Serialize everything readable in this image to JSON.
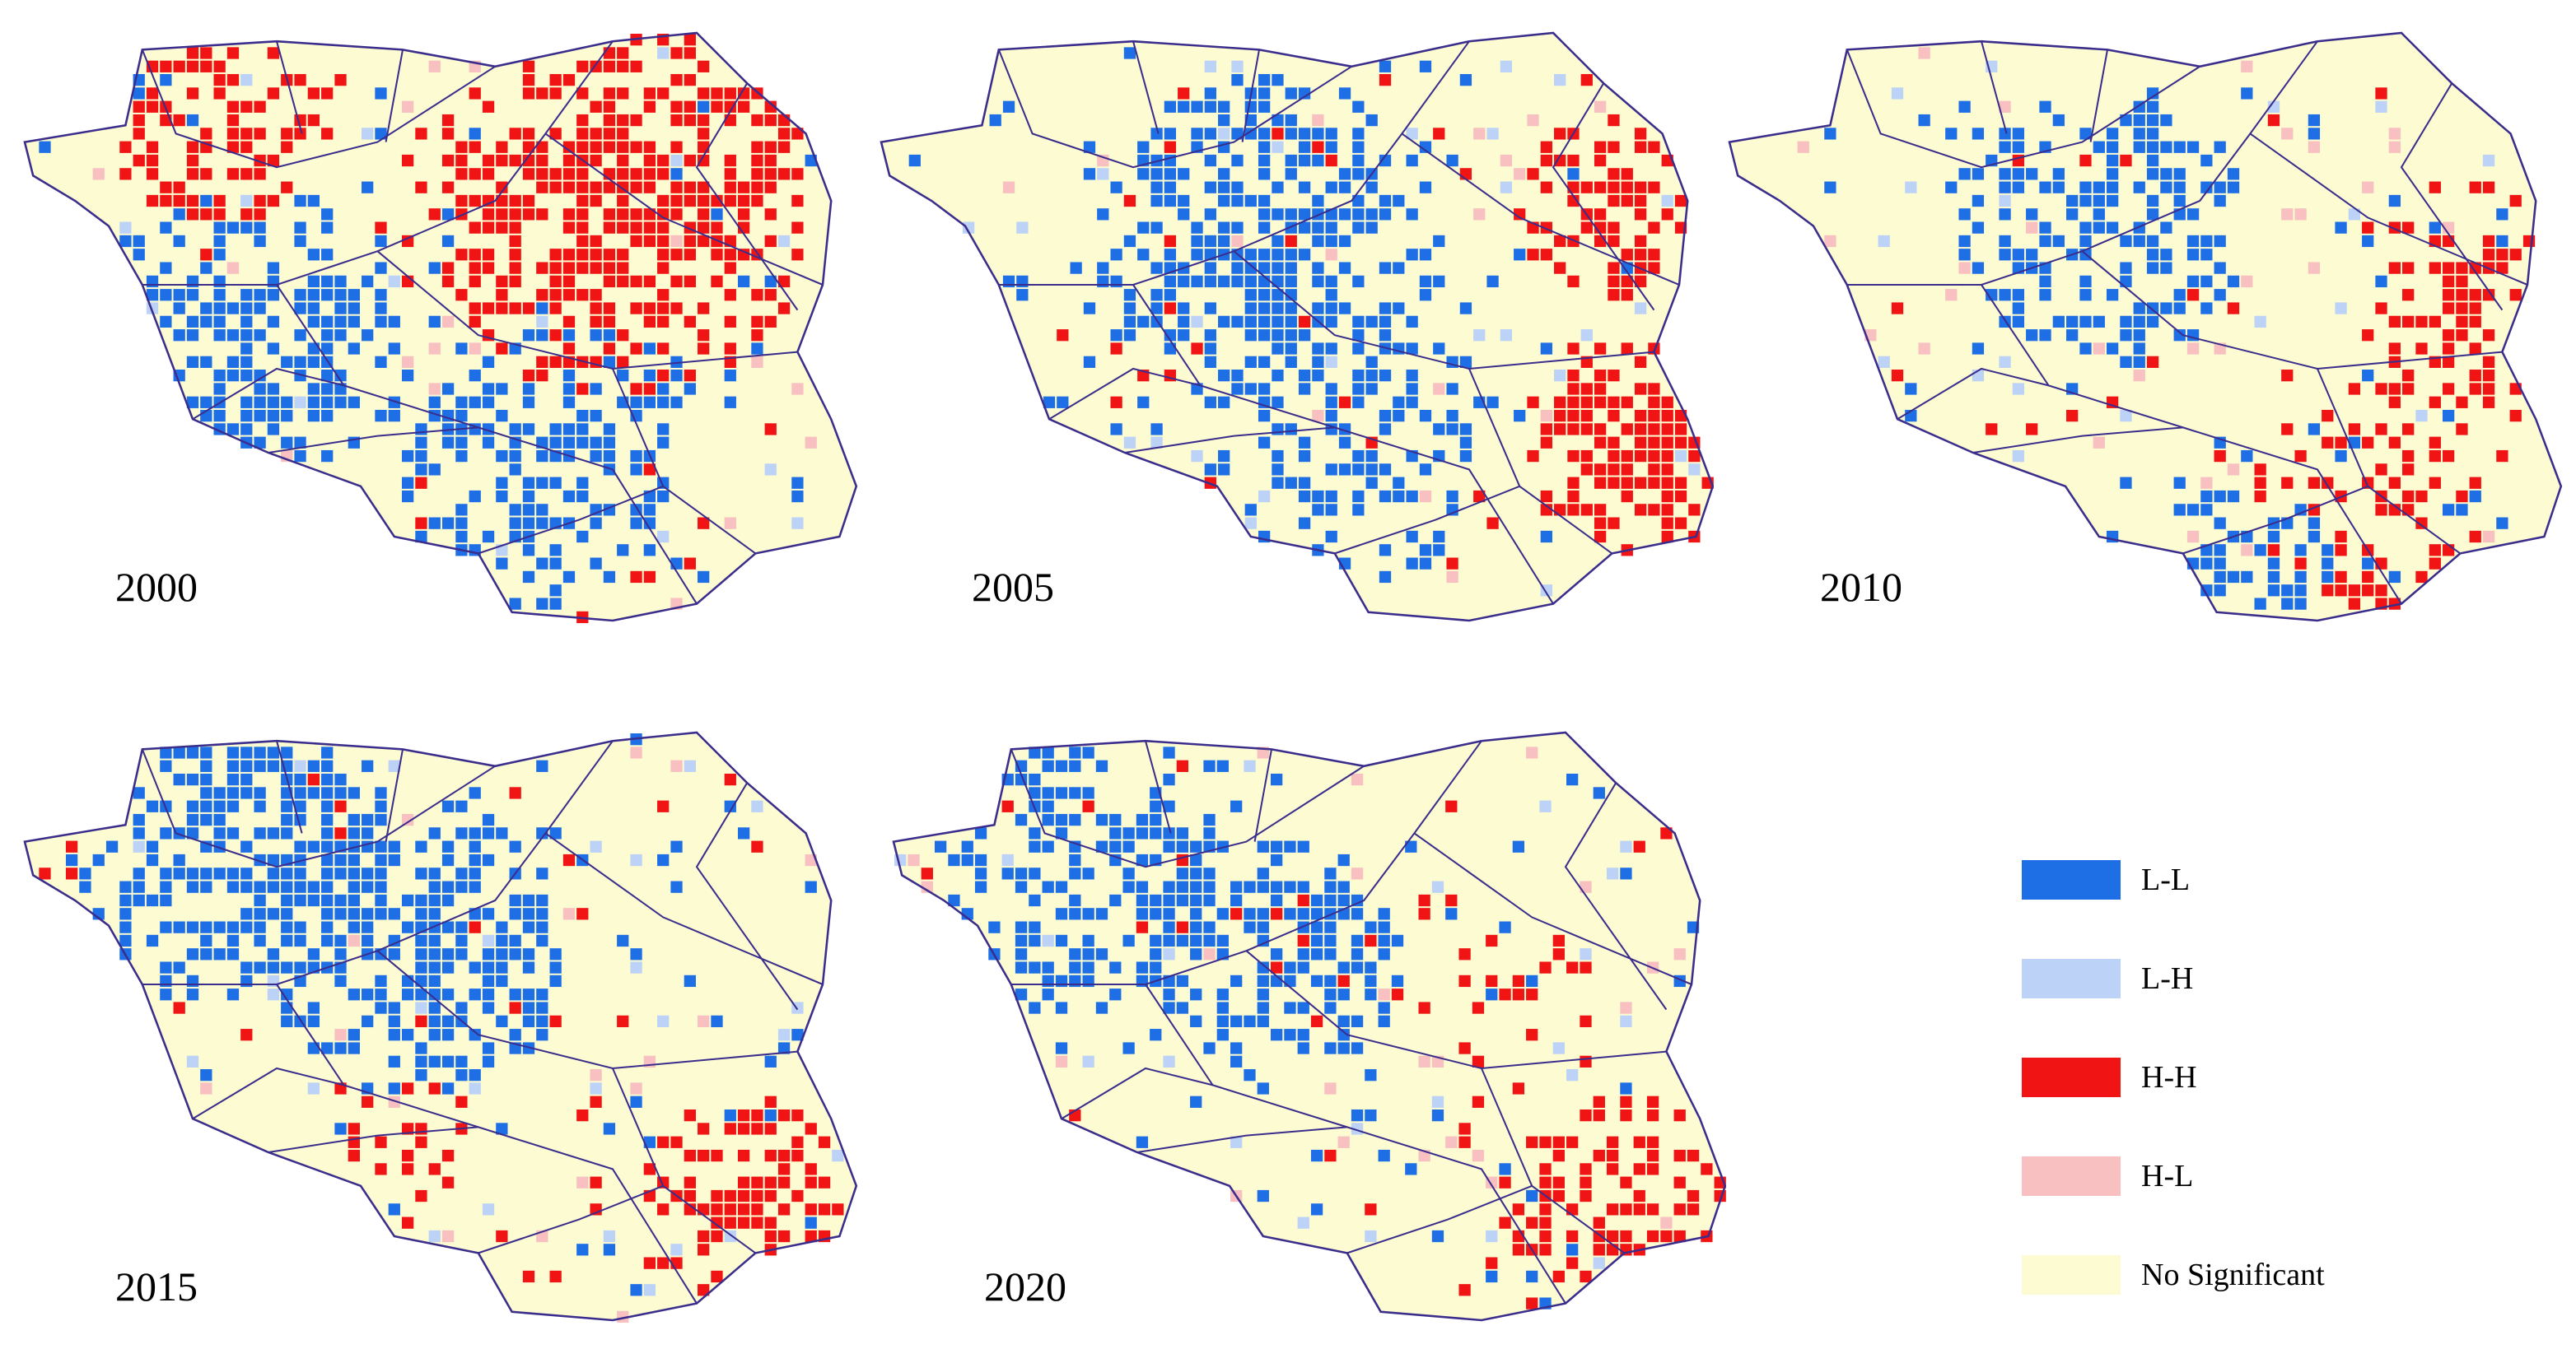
{
  "panels": [
    {
      "year": "2000"
    },
    {
      "year": "2005"
    },
    {
      "year": "2010"
    },
    {
      "year": "2015"
    },
    {
      "year": "2020"
    }
  ],
  "legend": [
    {
      "label": "L-L",
      "color": "#1e6fe6"
    },
    {
      "label": "L-H",
      "color": "#bcd2f7"
    },
    {
      "label": "H-H",
      "color": "#f01414"
    },
    {
      "label": "H-L",
      "color": "#f8c0c0"
    },
    {
      "label": "No Significant",
      "color": "#fdfbd2"
    }
  ]
}
